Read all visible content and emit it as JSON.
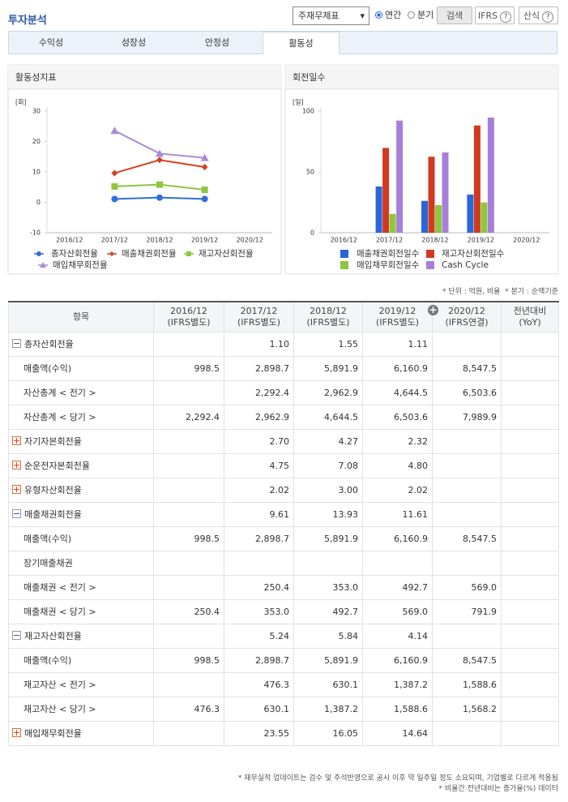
{
  "header": {
    "title": "투자분석",
    "select": "주재무제표",
    "radio_options": [
      "연간",
      "분기"
    ],
    "selected_radio": 0,
    "buttons": [
      "검색",
      "IFRS",
      "산식"
    ]
  },
  "tabs": [
    "수익성",
    "성장성",
    "안정성",
    "활동성"
  ],
  "active_tab": 3,
  "chart_data": [
    {
      "type": "line",
      "title": "활동성지표",
      "y_unit": "[회]",
      "categories": [
        "2016/12",
        "2017/12",
        "2018/12",
        "2019/12",
        "2020/12"
      ],
      "ylim": [
        -10,
        30
      ],
      "yticks": [
        -10,
        0,
        10,
        20,
        30
      ],
      "grid": false,
      "series": [
        {
          "name": "총자산회전율",
          "color": "#2f6fd8",
          "marker": "circle",
          "values": [
            null,
            1.1,
            1.55,
            1.11,
            null
          ]
        },
        {
          "name": "매출채권회전율",
          "color": "#d4421f",
          "marker": "diamond",
          "values": [
            null,
            9.61,
            13.93,
            11.61,
            null
          ]
        },
        {
          "name": "재고자산회전율",
          "color": "#8cc63f",
          "marker": "square",
          "values": [
            null,
            5.24,
            5.84,
            4.14,
            null
          ]
        },
        {
          "name": "매입채무회전율",
          "color": "#a98bd8",
          "marker": "triangle",
          "values": [
            null,
            23.55,
            16.05,
            14.64,
            null
          ]
        }
      ]
    },
    {
      "type": "bar",
      "title": "회전일수",
      "y_unit": "[일]",
      "categories": [
        "2016/12",
        "2017/12",
        "2018/12",
        "2019/12",
        "2020/12"
      ],
      "ylim": [
        0,
        100
      ],
      "yticks": [
        0,
        50,
        100
      ],
      "grid": false,
      "series": [
        {
          "name": "매출채권회전일수",
          "color": "#2a66d6",
          "values": [
            null,
            38.0,
            26.2,
            31.4,
            null
          ]
        },
        {
          "name": "재고자산회전일수",
          "color": "#d13a1f",
          "values": [
            null,
            69.7,
            62.5,
            88.2,
            null
          ]
        },
        {
          "name": "매입채무회전일수",
          "color": "#8ec63f",
          "values": [
            null,
            15.5,
            22.7,
            24.9,
            null
          ]
        },
        {
          "name": "Cash Cycle",
          "color": "#a77fd9",
          "values": [
            null,
            92.2,
            66.0,
            94.7,
            null
          ]
        }
      ]
    }
  ],
  "notes": [
    "* 단위 : 억원, 비율",
    "* 분기 : 순액기준"
  ],
  "table": {
    "item_header": "항목",
    "columns": [
      {
        "period": "2016/12",
        "basis": "(IFRS별도)"
      },
      {
        "period": "2017/12",
        "basis": "(IFRS별도)"
      },
      {
        "period": "2018/12",
        "basis": "(IFRS별도)"
      },
      {
        "period": "2019/12",
        "basis": "(IFRS별도)"
      },
      {
        "period": "2020/12",
        "basis": "(IFRS연결)"
      },
      {
        "period": "전년대비",
        "basis": "(YoY)"
      }
    ],
    "rows": [
      {
        "label": "총자산회전율",
        "toggle": "collapse",
        "cells": [
          null,
          "1.10",
          "1.55",
          "1.11",
          null,
          null
        ]
      },
      {
        "label": "매출액(수익)",
        "cells": [
          "998.5",
          "2,898.7",
          "5,891.9",
          "6,160.9",
          "8,547.5",
          null
        ]
      },
      {
        "label": "자산총계 < 전기 >",
        "cells": [
          null,
          "2,292.4",
          "2,962.9",
          "4,644.5",
          "6,503.6",
          null
        ]
      },
      {
        "label": "자산총계 < 당기 >",
        "cells": [
          "2,292.4",
          "2,962.9",
          "4,644.5",
          "6,503.6",
          "7,989.9",
          null
        ]
      },
      {
        "label": "자기자본회전율",
        "toggle": "expand",
        "cells": [
          null,
          "2.70",
          "4.27",
          "2.32",
          null,
          null
        ]
      },
      {
        "label": "순운전자본회전율",
        "toggle": "expand",
        "cells": [
          null,
          "4.75",
          "7.08",
          "4.80",
          null,
          null
        ]
      },
      {
        "label": "유형자산회전율",
        "toggle": "expand",
        "cells": [
          null,
          "2.02",
          "3.00",
          "2.02",
          null,
          null
        ]
      },
      {
        "label": "매출채권회전율",
        "toggle": "collapse",
        "cells": [
          null,
          "9.61",
          "13.93",
          "11.61",
          null,
          null
        ]
      },
      {
        "label": "매출액(수익)",
        "cells": [
          "998.5",
          "2,898.7",
          "5,891.9",
          "6,160.9",
          "8,547.5",
          null
        ]
      },
      {
        "label": "장기매출채권",
        "cells": [
          null,
          null,
          null,
          null,
          null,
          null
        ]
      },
      {
        "label": "매출채권 < 전기 >",
        "cells": [
          null,
          "250.4",
          "353.0",
          "492.7",
          "569.0",
          null
        ]
      },
      {
        "label": "매출채권 < 당기 >",
        "cells": [
          "250.4",
          "353.0",
          "492.7",
          "569.0",
          "791.9",
          null
        ]
      },
      {
        "label": "재고자산회전율",
        "toggle": "collapse",
        "cells": [
          null,
          "5.24",
          "5.84",
          "4.14",
          null,
          null
        ]
      },
      {
        "label": "매출액(수익)",
        "cells": [
          "998.5",
          "2,898.7",
          "5,891.9",
          "6,160.9",
          "8,547.5",
          null
        ]
      },
      {
        "label": "재고자산 < 전기 >",
        "cells": [
          null,
          "476.3",
          "630.1",
          "1,387.2",
          "1,588.6",
          null
        ]
      },
      {
        "label": "재고자산 < 당기 >",
        "cells": [
          "476.3",
          "630.1",
          "1,387.2",
          "1,588.6",
          "1,568.2",
          null
        ]
      },
      {
        "label": "매입채무회전율",
        "toggle": "expand",
        "cells": [
          null,
          "23.55",
          "16.05",
          "14.64",
          null,
          null
        ]
      }
    ]
  },
  "footer": [
    "* 재무실적 업데이트는 검수 및 주석반영으로 공시 이후 약 일주일 정도 소요되며, 기업별로 다르게 적용됨",
    "* 비율간 전년대비는 증가율(%) 데이터"
  ]
}
